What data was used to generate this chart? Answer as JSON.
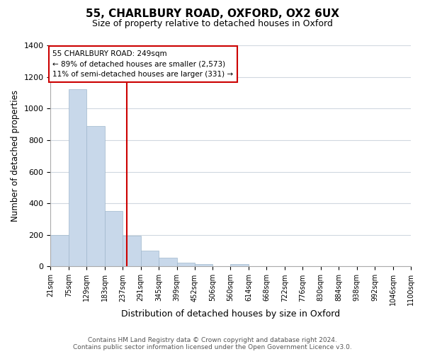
{
  "title": "55, CHARLBURY ROAD, OXFORD, OX2 6UX",
  "subtitle": "Size of property relative to detached houses in Oxford",
  "xlabel": "Distribution of detached houses by size in Oxford",
  "ylabel": "Number of detached properties",
  "bar_color": "#c8d8ea",
  "bar_edge_color": "#a0b8cc",
  "vline_x": 249,
  "vline_color": "#cc0000",
  "annotation_title": "55 CHARLBURY ROAD: 249sqm",
  "annotation_line1": "← 89% of detached houses are smaller (2,573)",
  "annotation_line2": "11% of semi-detached houses are larger (331) →",
  "annotation_box_color": "#ffffff",
  "annotation_box_edge": "#cc0000",
  "bin_edges": [
    21,
    75,
    129,
    183,
    237,
    291,
    345,
    399,
    452,
    506,
    560,
    614,
    668,
    722,
    776,
    830,
    884,
    938,
    992,
    1046,
    1100
  ],
  "bin_counts": [
    200,
    1120,
    890,
    350,
    195,
    100,
    55,
    25,
    15,
    0,
    15,
    0,
    0,
    0,
    0,
    0,
    0,
    0,
    0,
    0
  ],
  "ylim": [
    0,
    1400
  ],
  "yticks": [
    0,
    200,
    400,
    600,
    800,
    1000,
    1200,
    1400
  ],
  "footer_line1": "Contains HM Land Registry data © Crown copyright and database right 2024.",
  "footer_line2": "Contains public sector information licensed under the Open Government Licence v3.0.",
  "footer_color": "#555555",
  "background_color": "#ffffff",
  "grid_color": "#d0d8e0"
}
